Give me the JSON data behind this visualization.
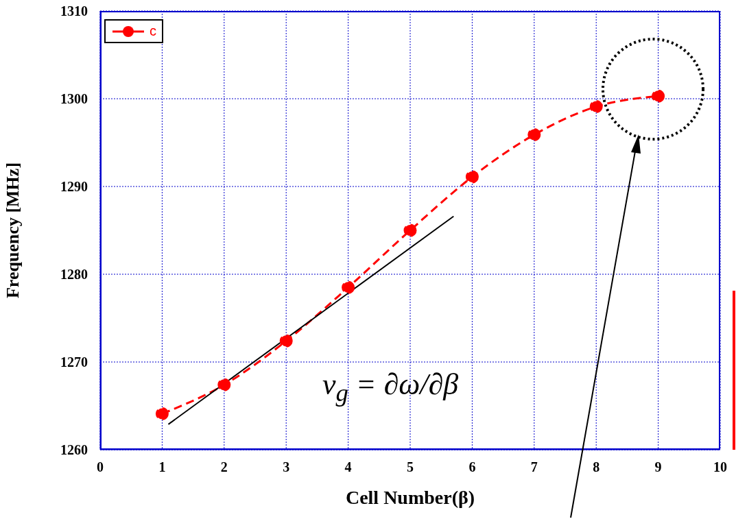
{
  "chart_data": {
    "type": "line",
    "xlabel": "Cell Number(β)",
    "ylabel": "Frequency [MHz]",
    "x": [
      1,
      2,
      3,
      4,
      5,
      6,
      7,
      8,
      9
    ],
    "series": [
      {
        "name": "c",
        "color": "#ff0000",
        "values": [
          1264.1,
          1267.4,
          1272.4,
          1278.5,
          1285.0,
          1291.1,
          1295.9,
          1299.1,
          1300.3
        ],
        "line_style": "dashed",
        "marker": "circle"
      },
      {
        "type": "line",
        "x": [
          1.1,
          5.7
        ],
        "color": "#000000",
        "values": [
          1262.9,
          1286.6
        ],
        "line_style": "solid",
        "marker": "none"
      }
    ],
    "xlim": [
      0,
      10
    ],
    "xticks": [
      0,
      1,
      2,
      3,
      4,
      5,
      6,
      7,
      8,
      9,
      10
    ],
    "ylim": [
      1260,
      1310
    ],
    "yticks": [
      1260,
      1270,
      1280,
      1290,
      1300,
      1310
    ],
    "grid": true,
    "legend": "top left",
    "annotations": [
      "v$_{g}$ = ∂ω/∂β"
    ]
  }
}
